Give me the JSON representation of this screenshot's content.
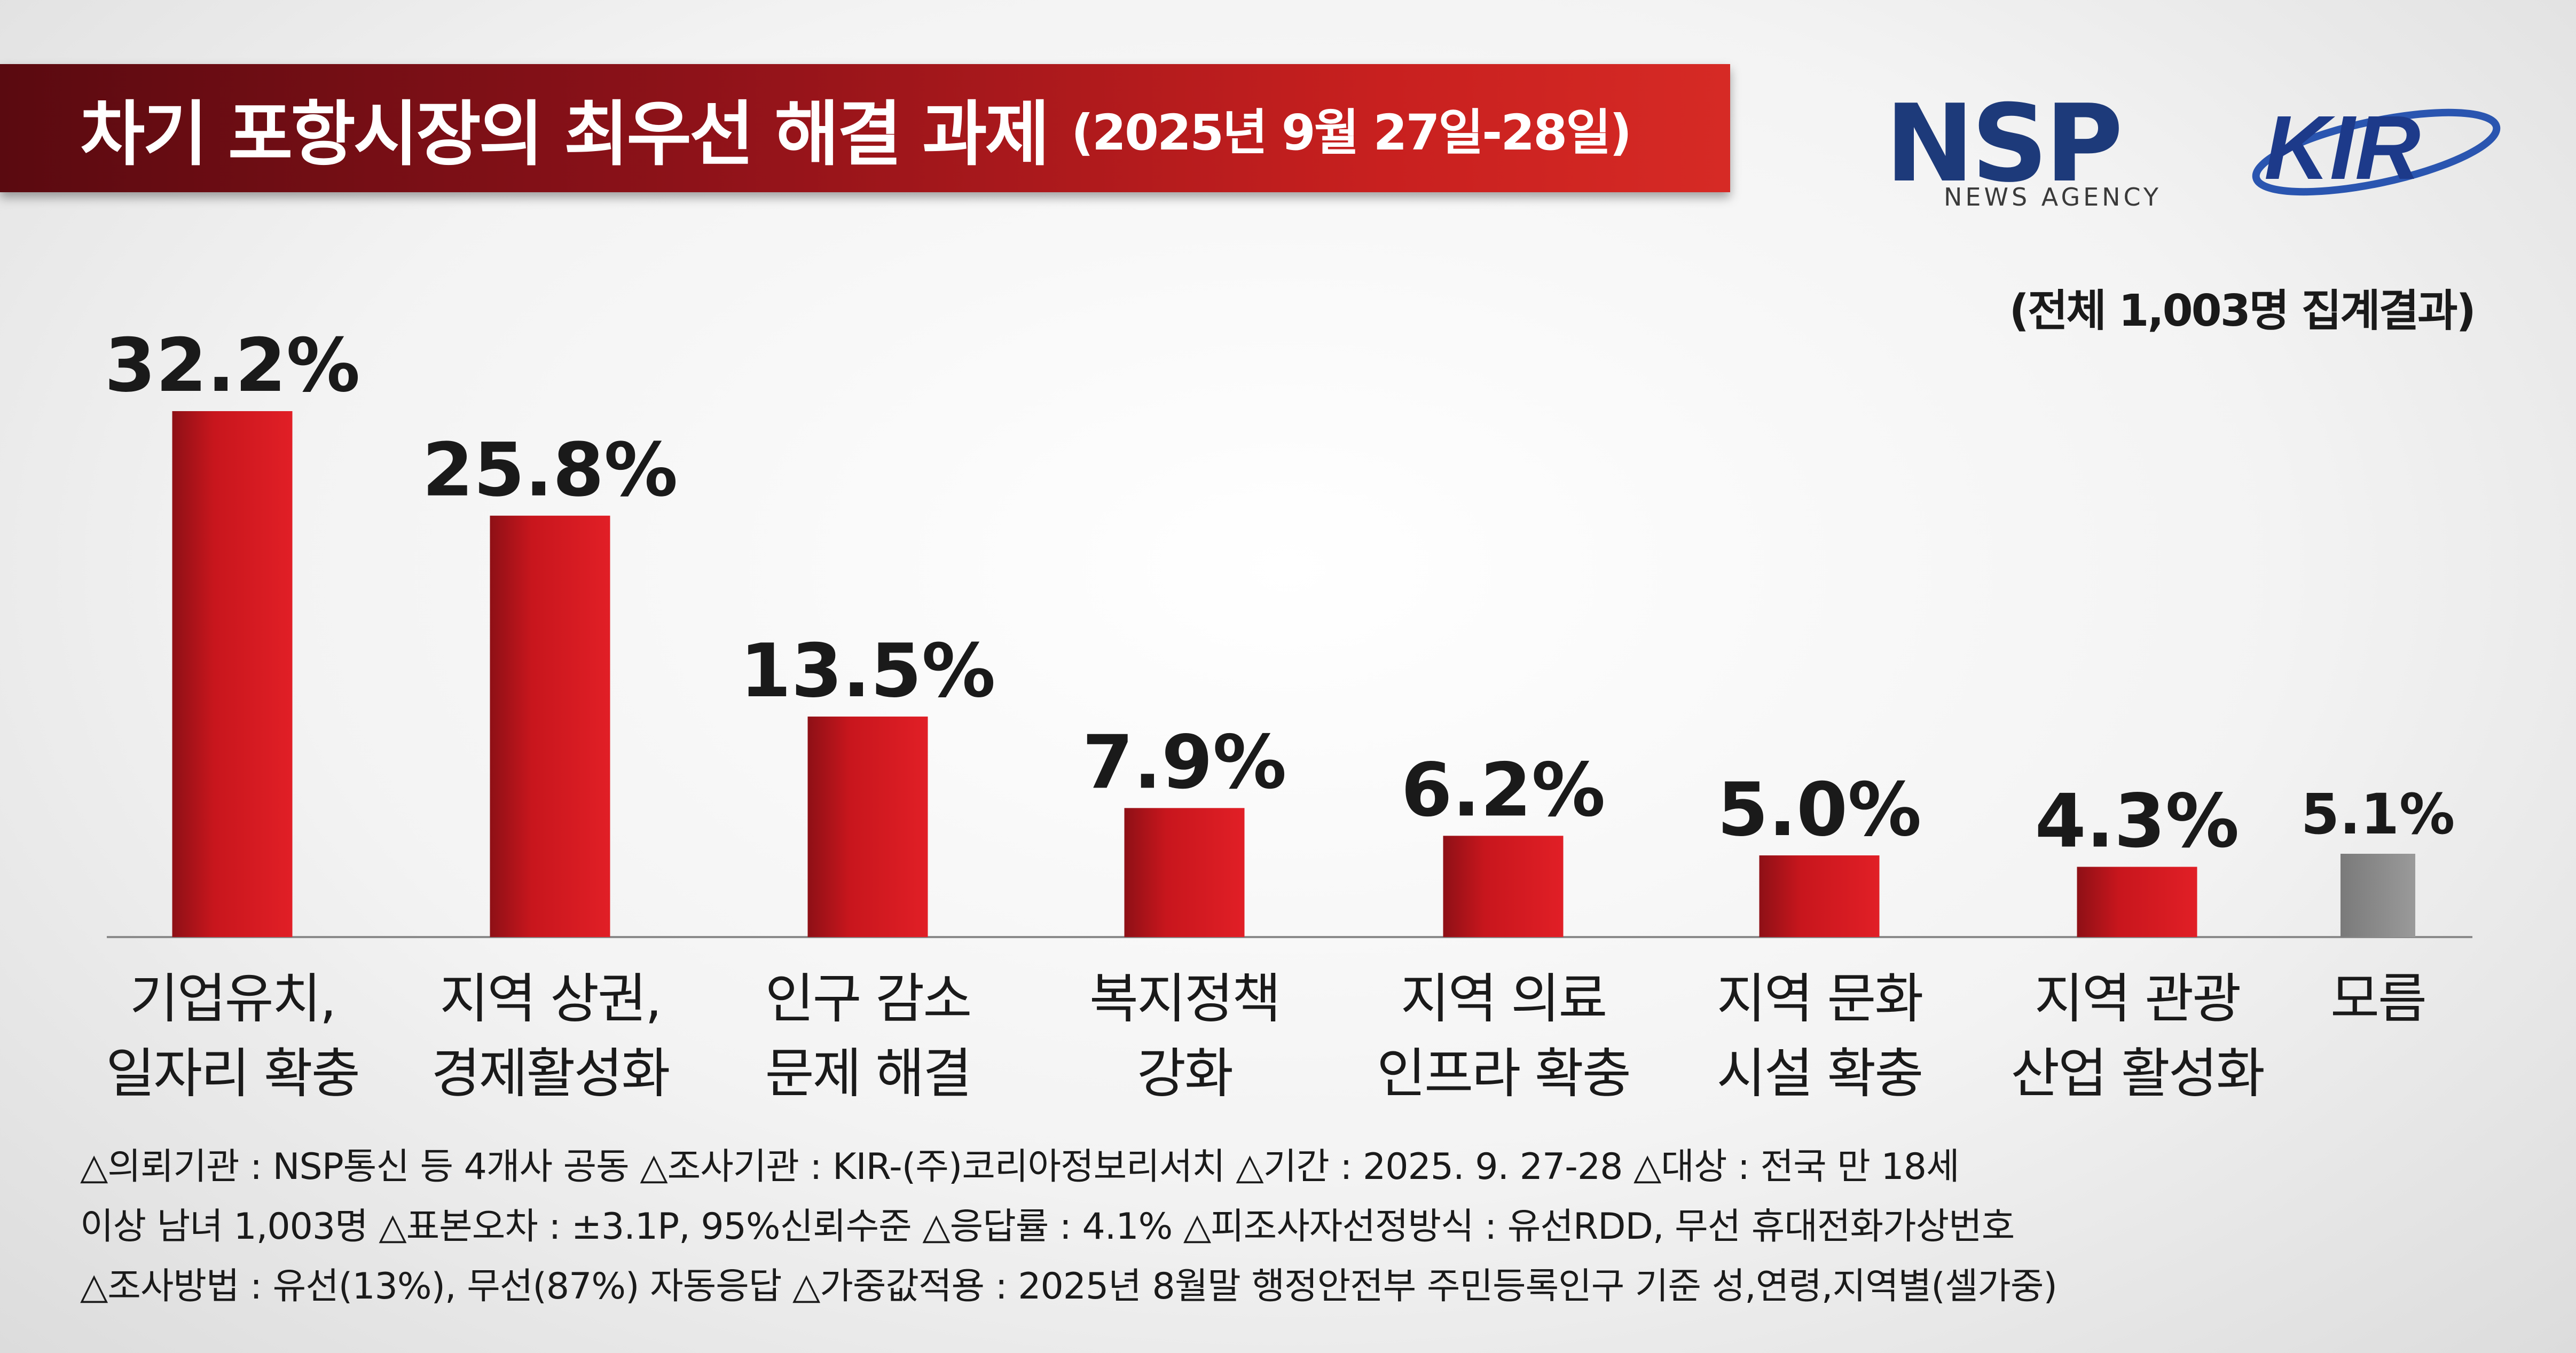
{
  "header": {
    "title": "차기 포항시장의 최우선 해결 과제",
    "period": "(2025년 9월 27일-28일)"
  },
  "logos": {
    "nsp_text": "NSP",
    "nsp_sub": "NEWS AGENCY",
    "kir_text": "KIR"
  },
  "total_note": "(전체 1,003명 집계결과)",
  "chart_data": {
    "type": "bar",
    "categories": [
      [
        "기업유치,",
        "일자리 확충"
      ],
      [
        "지역 상권,",
        "경제활성화"
      ],
      [
        "인구 감소",
        "문제 해결"
      ],
      [
        "복지정책",
        "강화"
      ],
      [
        "지역 의료",
        "인프라 확충"
      ],
      [
        "지역 문화",
        "시설 확충"
      ],
      [
        "지역 관광",
        "산업 활성화"
      ],
      [
        "모름"
      ]
    ],
    "values": [
      32.2,
      25.8,
      13.5,
      7.9,
      6.2,
      5.0,
      4.3,
      5.1
    ],
    "value_labels": [
      "32.2%",
      "25.8%",
      "13.5%",
      "7.9%",
      "6.2%",
      "5.0%",
      "4.3%",
      "5.1%"
    ],
    "colors": [
      "#c8161d",
      "#c8161d",
      "#c8161d",
      "#c8161d",
      "#c8161d",
      "#c8161d",
      "#c8161d",
      "#8c8c8c"
    ],
    "ylim": [
      0,
      32.2
    ],
    "grid": false
  },
  "notes": [
    "△의뢰기관 : NSP통신 등 4개사 공동    △조사기관 : KIR-(주)코리아정보리서치   △기간 : 2025. 9. 27-28   △대상 : 전국 만 18세",
    "이상 남녀 1,003명   △표본오차 : ±3.1P, 95%신뢰수준   △응답률 : 4.1%   △피조사자선정방식 : 유선RDD, 무선 휴대전화가상번호",
    "△조사방법 : 유선(13%), 무선(87%) 자동응답   △가중값적용 : 2025년 8월말 행정안전부 주민등록인구 기준 성,연령,지역별(셀가중)"
  ]
}
